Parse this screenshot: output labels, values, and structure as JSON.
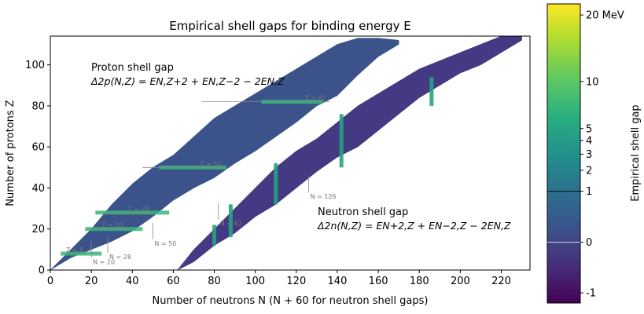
{
  "chart_data": {
    "type": "heatmap",
    "title": "Empirical shell gaps for binding energy E",
    "xlabel": "Number of neutrons N (N + 60 for neutron shell gaps)",
    "ylabel": "Number of protons Z",
    "xlim": [
      0,
      234
    ],
    "ylim": [
      0,
      114
    ],
    "xticks": [
      0,
      20,
      40,
      60,
      80,
      100,
      120,
      140,
      160,
      180,
      200,
      220
    ],
    "yticks": [
      0,
      20,
      40,
      60,
      80,
      100
    ],
    "colorbar": {
      "label": "Empirical shell gap",
      "range": [
        -1.2,
        22
      ],
      "ticks": [
        {
          "value": -1,
          "label": "-1"
        },
        {
          "value": 0,
          "label": "0"
        },
        {
          "value": 1,
          "label": "1"
        },
        {
          "value": 2,
          "label": "2"
        },
        {
          "value": 3,
          "label": "3"
        },
        {
          "value": 4,
          "label": "4"
        },
        {
          "value": 5,
          "label": "5"
        },
        {
          "value": 10,
          "label": "10"
        },
        {
          "value": 20,
          "label": "20 MeV"
        }
      ]
    },
    "annotations": {
      "proton_title": "Proton shell gap",
      "proton_formula": "Δ2p(N,Z) = EN,Z+2 + EN,Z−2 − 2EN,Z",
      "neutron_title": "Neutron shell gap",
      "neutron_formula": "Δ2n(N,Z) = EN+2,Z + EN−2,Z − 2EN,Z"
    },
    "proton_magic": [
      {
        "z": 8,
        "label": "Z = 8"
      },
      {
        "z": 20,
        "label": "Z = 20"
      },
      {
        "z": 28,
        "label": "Z = 28"
      },
      {
        "z": 50,
        "label": "Z = 50"
      },
      {
        "z": 82,
        "label": "Z = 82"
      }
    ],
    "neutron_magic": [
      {
        "n": 20,
        "label": "N = 20"
      },
      {
        "n": 28,
        "label": "N = 28"
      },
      {
        "n": 50,
        "label": "N = 50"
      },
      {
        "n": 82,
        "label": "N = 82"
      },
      {
        "n": 126,
        "label": "N = 126"
      }
    ],
    "proton_band": {
      "lower": [
        [
          0,
          0
        ],
        [
          10,
          6
        ],
        [
          20,
          10
        ],
        [
          30,
          14
        ],
        [
          40,
          19
        ],
        [
          50,
          26
        ],
        [
          60,
          34
        ],
        [
          70,
          40
        ],
        [
          80,
          45
        ],
        [
          90,
          52
        ],
        [
          100,
          58
        ],
        [
          110,
          65
        ],
        [
          120,
          72
        ],
        [
          130,
          80
        ],
        [
          140,
          85
        ],
        [
          150,
          95
        ],
        [
          160,
          104
        ],
        [
          170,
          110
        ]
      ],
      "upper": [
        [
          0,
          0
        ],
        [
          10,
          10
        ],
        [
          20,
          20
        ],
        [
          30,
          32
        ],
        [
          40,
          42
        ],
        [
          50,
          50
        ],
        [
          60,
          56
        ],
        [
          70,
          65
        ],
        [
          80,
          74
        ],
        [
          90,
          80
        ],
        [
          100,
          86
        ],
        [
          110,
          92
        ],
        [
          120,
          98
        ],
        [
          130,
          104
        ],
        [
          140,
          110
        ],
        [
          150,
          113
        ],
        [
          160,
          113
        ],
        [
          170,
          112
        ]
      ],
      "gap_lines": [
        {
          "z": 8,
          "n_start": 5,
          "n_end": 25
        },
        {
          "z": 20,
          "n_start": 17,
          "n_end": 45
        },
        {
          "z": 28,
          "n_start": 22,
          "n_end": 58
        },
        {
          "z": 50,
          "n_start": 53,
          "n_end": 86
        },
        {
          "z": 82,
          "n_start": 103,
          "n_end": 133
        }
      ]
    },
    "neutron_band": {
      "lower": [
        [
          62,
          0
        ],
        [
          70,
          4
        ],
        [
          80,
          12
        ],
        [
          90,
          18
        ],
        [
          100,
          26
        ],
        [
          110,
          32
        ],
        [
          120,
          40
        ],
        [
          130,
          48
        ],
        [
          140,
          55
        ],
        [
          150,
          60
        ],
        [
          160,
          68
        ],
        [
          170,
          76
        ],
        [
          180,
          84
        ],
        [
          190,
          90
        ],
        [
          200,
          96
        ],
        [
          210,
          100
        ],
        [
          220,
          106
        ],
        [
          230,
          112
        ]
      ],
      "upper": [
        [
          62,
          0
        ],
        [
          70,
          10
        ],
        [
          80,
          20
        ],
        [
          90,
          30
        ],
        [
          100,
          40
        ],
        [
          110,
          50
        ],
        [
          120,
          58
        ],
        [
          130,
          64
        ],
        [
          140,
          72
        ],
        [
          150,
          80
        ],
        [
          160,
          86
        ],
        [
          170,
          92
        ],
        [
          180,
          98
        ],
        [
          190,
          102
        ],
        [
          200,
          106
        ],
        [
          210,
          110
        ],
        [
          220,
          114
        ],
        [
          230,
          114
        ]
      ],
      "gap_lines": [
        {
          "n": 80,
          "z_start": 12,
          "z_end": 22
        },
        {
          "n": 88,
          "z_start": 16,
          "z_end": 32
        },
        {
          "n": 110,
          "z_start": 32,
          "z_end": 52
        },
        {
          "n": 142,
          "z_start": 50,
          "z_end": 76
        },
        {
          "n": 186,
          "z_start": 80,
          "z_end": 94
        }
      ]
    }
  }
}
